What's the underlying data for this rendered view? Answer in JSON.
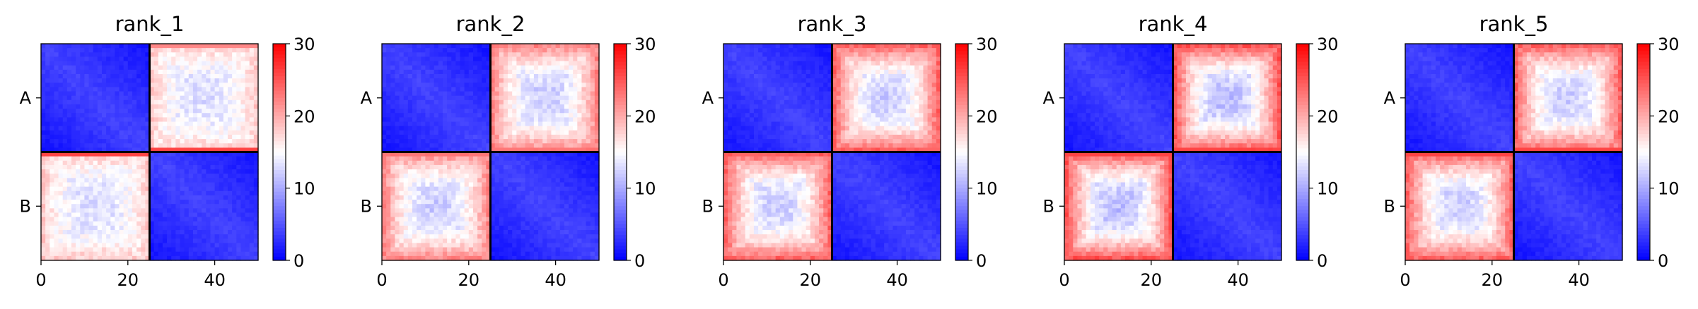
{
  "chart_data": [
    {
      "type": "heatmap",
      "title": "rank_1",
      "x_ticks": [
        0,
        20,
        40
      ],
      "y_category_labels": [
        "A",
        "B"
      ],
      "xlim": [
        0,
        50
      ],
      "ylim": [
        0,
        50
      ],
      "block_boundary": 25,
      "colorbar": {
        "range": [
          0,
          30
        ],
        "ticks": [
          0,
          10,
          20,
          30
        ],
        "colormap": "bwr"
      },
      "block_values": {
        "diagonal_center": 4,
        "diagonal_edge": 1,
        "off_diagonal_center": 13,
        "off_diagonal_edge": 18
      },
      "block_boundary_stripe_value": 26
    },
    {
      "type": "heatmap",
      "title": "rank_2",
      "x_ticks": [
        0,
        20,
        40
      ],
      "y_category_labels": [
        "A",
        "B"
      ],
      "xlim": [
        0,
        50
      ],
      "ylim": [
        0,
        50
      ],
      "block_boundary": 25,
      "colorbar": {
        "range": [
          0,
          30
        ],
        "ticks": [
          0,
          10,
          20,
          30
        ],
        "colormap": "bwr"
      },
      "block_values": {
        "diagonal_center": 4,
        "diagonal_edge": 1,
        "off_diagonal_center": 12,
        "off_diagonal_edge": 22
      },
      "block_boundary_stripe_value": 23
    },
    {
      "type": "heatmap",
      "title": "rank_3",
      "x_ticks": [
        0,
        20,
        40
      ],
      "y_category_labels": [
        "A",
        "B"
      ],
      "xlim": [
        0,
        50
      ],
      "ylim": [
        0,
        50
      ],
      "block_boundary": 25,
      "colorbar": {
        "range": [
          0,
          30
        ],
        "ticks": [
          0,
          10,
          20,
          30
        ],
        "colormap": "bwr"
      },
      "block_values": {
        "diagonal_center": 4,
        "diagonal_edge": 1,
        "off_diagonal_center": 12,
        "off_diagonal_edge": 24
      },
      "block_boundary_stripe_value": 24
    },
    {
      "type": "heatmap",
      "title": "rank_4",
      "x_ticks": [
        0,
        20,
        40
      ],
      "y_category_labels": [
        "A",
        "B"
      ],
      "xlim": [
        0,
        50
      ],
      "ylim": [
        0,
        50
      ],
      "block_boundary": 25,
      "colorbar": {
        "range": [
          0,
          30
        ],
        "ticks": [
          0,
          10,
          20,
          30
        ],
        "colormap": "bwr"
      },
      "block_values": {
        "diagonal_center": 4,
        "diagonal_edge": 1,
        "off_diagonal_center": 11,
        "off_diagonal_edge": 25
      },
      "block_boundary_stripe_value": 26
    },
    {
      "type": "heatmap",
      "title": "rank_5",
      "x_ticks": [
        0,
        20,
        40
      ],
      "y_category_labels": [
        "A",
        "B"
      ],
      "xlim": [
        0,
        50
      ],
      "ylim": [
        0,
        50
      ],
      "block_boundary": 25,
      "colorbar": {
        "range": [
          0,
          30
        ],
        "ticks": [
          0,
          10,
          20,
          30
        ],
        "colormap": "bwr"
      },
      "block_values": {
        "diagonal_center": 4,
        "diagonal_edge": 1,
        "off_diagonal_center": 12,
        "off_diagonal_edge": 24
      },
      "block_boundary_stripe_value": 26
    }
  ]
}
